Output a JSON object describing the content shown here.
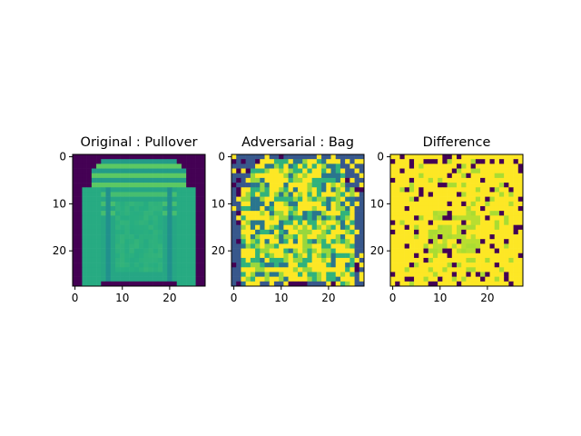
{
  "chart_data": {
    "type": "heatmap",
    "colormap": "viridis",
    "grid_size": 28,
    "panels": [
      {
        "title": "Original : Pullover",
        "xticks": [
          0,
          10,
          20
        ],
        "yticks": [
          0,
          10,
          20
        ],
        "xlim": [
          -0.5,
          27.5
        ],
        "ylim": [
          27.5,
          -0.5
        ],
        "description_values": {
          "background": 0.0,
          "garment_body": 0.6,
          "garment_bands": 0.55,
          "garment_highlight": 0.75
        }
      },
      {
        "title": "Adversarial : Bag",
        "xticks": [
          0,
          10,
          20
        ],
        "yticks": [
          0,
          10,
          20
        ],
        "xlim": [
          -0.5,
          27.5
        ],
        "ylim": [
          27.5,
          -0.5
        ]
      },
      {
        "title": "Difference",
        "xticks": [
          0,
          10,
          20
        ],
        "yticks": [
          0,
          10,
          20
        ],
        "xlim": [
          -0.5,
          27.5
        ],
        "ylim": [
          27.5,
          -0.5
        ]
      }
    ]
  }
}
